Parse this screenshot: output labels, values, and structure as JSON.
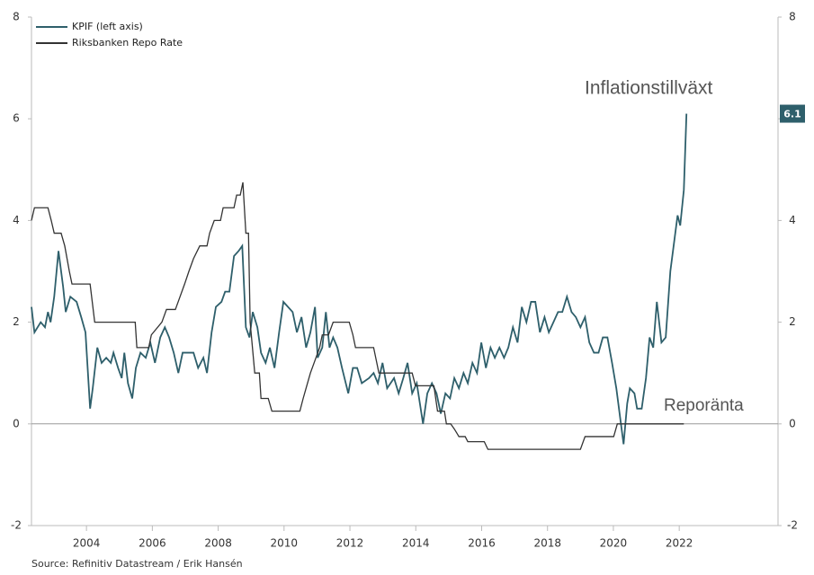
{
  "chart_data": {
    "type": "line",
    "xlim": [
      2002.33,
      2025.0
    ],
    "xticks": [
      2004,
      2006,
      2008,
      2010,
      2012,
      2014,
      2016,
      2018,
      2020,
      2022
    ],
    "ylim": [
      -2,
      8
    ],
    "yticks": [
      -2,
      0,
      2,
      4,
      6,
      8
    ],
    "y2lim": [
      -2,
      8
    ],
    "y2ticks": [
      -2,
      0,
      2,
      4,
      6,
      8
    ],
    "zero_line": true,
    "legend": "top-left",
    "annotations": [
      "Inflationstillväxt",
      "Reporänta"
    ],
    "source": "Source: Refinitiv Datastream / Erik Hansén",
    "series": [
      {
        "name": "KPIF (left axis)",
        "color": "#2e5f6b",
        "x": [
          2002.33,
          2002.42,
          2002.61,
          2002.74,
          2002.83,
          2002.91,
          2003.02,
          2003.15,
          2003.29,
          2003.37,
          2003.51,
          2003.7,
          2003.84,
          2003.97,
          2004.11,
          2004.19,
          2004.33,
          2004.46,
          2004.6,
          2004.74,
          2004.82,
          2004.96,
          2005.07,
          2005.15,
          2005.26,
          2005.39,
          2005.5,
          2005.64,
          2005.8,
          2005.94,
          2006.08,
          2006.24,
          2006.38,
          2006.51,
          2006.65,
          2006.79,
          2006.92,
          2007.06,
          2007.25,
          2007.39,
          2007.55,
          2007.66,
          2007.8,
          2007.93,
          2008.1,
          2008.21,
          2008.34,
          2008.48,
          2008.62,
          2008.73,
          2008.84,
          2008.95,
          2009.05,
          2009.19,
          2009.3,
          2009.44,
          2009.57,
          2009.71,
          2009.85,
          2009.98,
          2010.12,
          2010.26,
          2010.39,
          2010.53,
          2010.67,
          2010.8,
          2010.94,
          2011.02,
          2011.16,
          2011.27,
          2011.38,
          2011.49,
          2011.62,
          2011.76,
          2011.95,
          2012.09,
          2012.22,
          2012.36,
          2012.58,
          2012.72,
          2012.85,
          2012.99,
          2013.13,
          2013.34,
          2013.48,
          2013.62,
          2013.75,
          2013.89,
          2014.03,
          2014.22,
          2014.35,
          2014.49,
          2014.63,
          2014.76,
          2014.9,
          2015.04,
          2015.17,
          2015.31,
          2015.45,
          2015.58,
          2015.72,
          2015.86,
          2015.99,
          2016.13,
          2016.27,
          2016.4,
          2016.54,
          2016.68,
          2016.81,
          2016.95,
          2017.09,
          2017.22,
          2017.36,
          2017.5,
          2017.63,
          2017.77,
          2017.91,
          2018.04,
          2018.18,
          2018.32,
          2018.45,
          2018.59,
          2018.73,
          2018.86,
          2019.0,
          2019.14,
          2019.27,
          2019.41,
          2019.55,
          2019.68,
          2019.82,
          2019.96,
          2020.09,
          2020.23,
          2020.31,
          2020.42,
          2020.5,
          2020.64,
          2020.72,
          2020.86,
          2020.99,
          2021.1,
          2021.21,
          2021.32,
          2021.46,
          2021.59,
          2021.73,
          2021.87,
          2021.95,
          2022.03,
          2022.14,
          2022.22
        ],
        "values": [
          2.3,
          1.8,
          2.0,
          1.9,
          2.2,
          2.0,
          2.5,
          3.4,
          2.7,
          2.2,
          2.5,
          2.4,
          2.1,
          1.8,
          0.3,
          0.7,
          1.5,
          1.2,
          1.3,
          1.2,
          1.4,
          1.1,
          0.9,
          1.4,
          0.8,
          0.5,
          1.1,
          1.4,
          1.3,
          1.6,
          1.2,
          1.7,
          1.9,
          1.7,
          1.4,
          1.0,
          1.4,
          1.4,
          1.4,
          1.1,
          1.3,
          1.0,
          1.8,
          2.3,
          2.4,
          2.6,
          2.6,
          3.3,
          3.4,
          3.5,
          1.9,
          1.7,
          2.2,
          1.9,
          1.4,
          1.2,
          1.5,
          1.1,
          1.8,
          2.4,
          2.3,
          2.2,
          1.8,
          2.1,
          1.5,
          1.8,
          2.3,
          1.3,
          1.5,
          2.2,
          1.5,
          1.7,
          1.5,
          1.1,
          0.6,
          1.1,
          1.1,
          0.8,
          0.9,
          1.0,
          0.8,
          1.2,
          0.7,
          0.9,
          0.6,
          0.9,
          1.2,
          0.6,
          0.8,
          0.0,
          0.6,
          0.8,
          0.6,
          0.2,
          0.6,
          0.5,
          0.9,
          0.7,
          1.0,
          0.8,
          1.2,
          1.0,
          1.6,
          1.1,
          1.5,
          1.3,
          1.5,
          1.3,
          1.5,
          1.9,
          1.6,
          2.3,
          2.0,
          2.4,
          2.4,
          1.8,
          2.1,
          1.8,
          2.0,
          2.2,
          2.2,
          2.5,
          2.2,
          2.1,
          1.9,
          2.1,
          1.6,
          1.4,
          1.4,
          1.7,
          1.7,
          1.2,
          0.7,
          0.0,
          -0.4,
          0.4,
          0.7,
          0.6,
          0.3,
          0.3,
          0.9,
          1.7,
          1.5,
          2.4,
          1.6,
          1.7,
          3.0,
          3.7,
          4.1,
          3.9,
          4.6,
          6.1
        ]
      },
      {
        "name": "Riksbanken Repo Rate",
        "color": "#333333",
        "axis": "y2",
        "x": [
          2002.33,
          2002.42,
          2002.83,
          2002.93,
          2003.02,
          2003.23,
          2003.34,
          2003.48,
          2003.56,
          2004.11,
          2004.25,
          2005.48,
          2005.53,
          2005.89,
          2005.97,
          2006.29,
          2006.43,
          2006.7,
          2006.84,
          2006.98,
          2007.11,
          2007.25,
          2007.44,
          2007.66,
          2007.74,
          2007.88,
          2008.07,
          2008.15,
          2008.48,
          2008.56,
          2008.67,
          2008.75,
          2008.84,
          2008.92,
          2008.97,
          2009.11,
          2009.25,
          2009.3,
          2009.52,
          2009.63,
          2010.48,
          2010.58,
          2010.69,
          2010.8,
          2010.94,
          2011.08,
          2011.16,
          2011.35,
          2011.49,
          2011.98,
          2012.09,
          2012.17,
          2012.72,
          2012.8,
          2012.88,
          2013.89,
          2013.99,
          2014.55,
          2014.66,
          2014.87,
          2014.93,
          2015.06,
          2015.17,
          2015.31,
          2015.5,
          2015.58,
          2016.08,
          2016.19,
          2019.0,
          2019.14,
          2020.01,
          2020.12,
          2022.14
        ],
        "values": [
          4.0,
          4.25,
          4.25,
          4.0,
          3.75,
          3.75,
          3.5,
          3.0,
          2.75,
          2.75,
          2.0,
          2.0,
          1.5,
          1.5,
          1.75,
          2.0,
          2.25,
          2.25,
          2.5,
          2.75,
          3.0,
          3.25,
          3.5,
          3.5,
          3.75,
          4.0,
          4.0,
          4.25,
          4.25,
          4.5,
          4.5,
          4.75,
          3.75,
          3.75,
          2.0,
          1.0,
          1.0,
          0.5,
          0.5,
          0.25,
          0.25,
          0.5,
          0.75,
          1.0,
          1.25,
          1.5,
          1.75,
          1.75,
          2.0,
          2.0,
          1.75,
          1.5,
          1.5,
          1.25,
          1.0,
          1.0,
          0.75,
          0.75,
          0.25,
          0.25,
          0.0,
          0.0,
          -0.1,
          -0.25,
          -0.25,
          -0.35,
          -0.35,
          -0.5,
          -0.5,
          -0.25,
          -0.25,
          0.0,
          0.0
        ]
      }
    ]
  }
}
